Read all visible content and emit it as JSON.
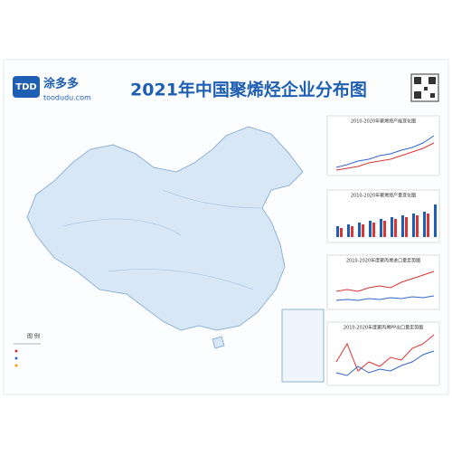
{
  "header": {
    "logo_mark": "TDD",
    "brand": "涂多多",
    "site": "toodudu.com",
    "title": "2021年中国聚烯烃企业分布图"
  },
  "side_charts": [
    {
      "title": "2010-2020年聚烯烃产能变化图"
    },
    {
      "title": "2010-2020年聚烯烃产量变化图"
    },
    {
      "title": "2010-2020年度聚丙烯进口量走势图"
    },
    {
      "title": "2010-2020年度聚丙烯PP出口量走势图"
    }
  ],
  "legend": {
    "title": "图 例"
  }
}
